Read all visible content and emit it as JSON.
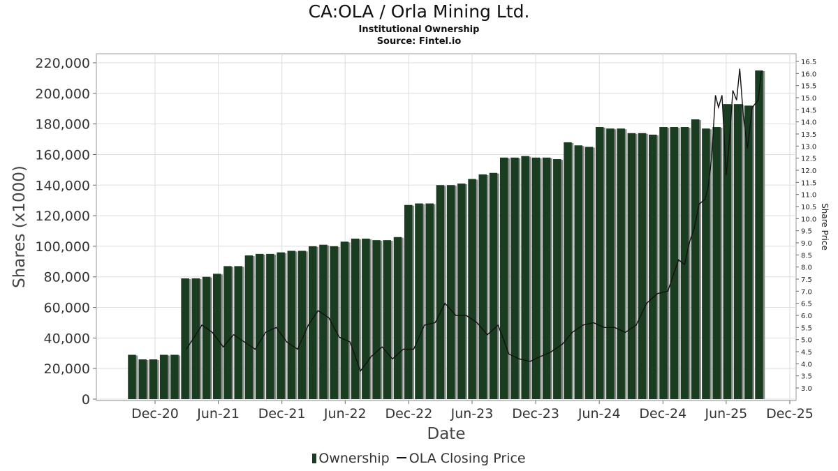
{
  "chart_data": {
    "type": "bar",
    "title": "CA:OLA / Orla Mining Ltd.",
    "subtitle": "Institutional Ownership",
    "source": "Source: Fintel.io",
    "ylabel": "Shares (x1000)",
    "xlabel": "Date",
    "y2label": "Share Price",
    "ylim": [
      0,
      225000
    ],
    "y2lim": [
      2.6,
      16.8
    ],
    "yticks": [
      "0",
      "20,000",
      "40,000",
      "60,000",
      "80,000",
      "100,000",
      "120,000",
      "140,000",
      "160,000",
      "180,000",
      "200,000",
      "220,000"
    ],
    "y2ticks": [
      "3.0",
      "3.5",
      "4.0",
      "4.5",
      "5.0",
      "5.5",
      "6.0",
      "6.5",
      "7.0",
      "7.5",
      "8.0",
      "8.5",
      "9.0",
      "9.5",
      "10.0",
      "10.5",
      "11.0",
      "11.5",
      "12.0",
      "12.5",
      "13.0",
      "13.5",
      "14.0",
      "14.5",
      "15.0",
      "15.5",
      "16.0",
      "16.5"
    ],
    "xticks": [
      "Dec-20",
      "Jun-21",
      "Dec-21",
      "Jun-22",
      "Dec-22",
      "Jun-23",
      "Dec-23",
      "Jun-24",
      "Dec-24",
      "Jun-25",
      "Dec-25"
    ],
    "grid": true,
    "legend_position": "bottom",
    "colors": {
      "bars": "#1a3d22",
      "bar_shadow": "#8a8a8a",
      "price_line": "#111111",
      "grid": "#dddddd"
    },
    "series": [
      {
        "name": "Ownership",
        "type": "bar",
        "values": [
          29000,
          26000,
          26000,
          29000,
          29000,
          79000,
          79000,
          80000,
          82000,
          87000,
          87000,
          94000,
          95000,
          95000,
          96000,
          97000,
          97000,
          100000,
          101000,
          100000,
          103000,
          105000,
          105000,
          104000,
          104000,
          106000,
          127000,
          128000,
          128000,
          140000,
          140000,
          141000,
          144000,
          147000,
          148000,
          158000,
          158000,
          159000,
          158000,
          158000,
          157000,
          168000,
          166000,
          165000,
          178000,
          177000,
          177000,
          174000,
          174000,
          173000,
          178000,
          178000,
          178000,
          183000,
          177000,
          178000,
          193000,
          193000,
          192000,
          215000
        ]
      },
      {
        "name": "OLA Closing Price",
        "type": "line",
        "x": [
          "2021-03-01",
          "2021-04-15",
          "2021-05-15",
          "2021-06-15",
          "2021-07-15",
          "2021-08-15",
          "2021-09-15",
          "2021-10-15",
          "2021-11-15",
          "2021-12-15",
          "2022-01-15",
          "2022-02-15",
          "2022-03-15",
          "2022-04-15",
          "2022-05-15",
          "2022-06-15",
          "2022-07-15",
          "2022-08-15",
          "2022-09-15",
          "2022-10-15",
          "2022-11-15",
          "2022-12-15",
          "2023-01-15",
          "2023-02-15",
          "2023-03-15",
          "2023-04-15",
          "2023-05-15",
          "2023-06-15",
          "2023-07-15",
          "2023-08-15",
          "2023-09-15",
          "2023-10-15",
          "2023-11-15",
          "2023-12-15",
          "2024-01-15",
          "2024-02-15",
          "2024-03-15",
          "2024-04-15",
          "2024-05-15",
          "2024-06-15",
          "2024-07-15",
          "2024-08-15",
          "2024-09-15",
          "2024-10-15",
          "2024-11-15",
          "2024-12-15",
          "2025-01-15",
          "2025-02-01",
          "2025-02-15",
          "2025-03-01",
          "2025-03-15",
          "2025-04-01",
          "2025-04-10",
          "2025-04-20",
          "2025-05-01",
          "2025-05-10",
          "2025-05-20",
          "2025-06-01",
          "2025-06-10",
          "2025-06-20",
          "2025-07-01",
          "2025-07-10",
          "2025-07-20",
          "2025-08-01",
          "2025-08-15",
          "2025-09-01",
          "2025-09-10"
        ],
        "values": [
          4.6,
          5.6,
          5.3,
          4.7,
          5.2,
          4.9,
          4.6,
          5.3,
          5.5,
          4.9,
          4.6,
          5.6,
          6.2,
          5.9,
          5.1,
          4.9,
          3.7,
          4.3,
          4.7,
          4.2,
          4.6,
          4.6,
          5.6,
          5.7,
          6.5,
          6.0,
          6.0,
          5.7,
          5.2,
          5.6,
          4.4,
          4.2,
          4.1,
          4.3,
          4.5,
          4.8,
          5.3,
          5.6,
          5.7,
          5.5,
          5.5,
          5.3,
          5.6,
          6.5,
          6.9,
          7.0,
          8.3,
          8.1,
          9.0,
          9.6,
          10.6,
          10.8,
          11.3,
          12.5,
          15.1,
          14.6,
          15.1,
          11.8,
          13.2,
          15.3,
          14.9,
          16.2,
          14.3,
          12.9,
          14.6,
          14.9,
          16.1
        ]
      }
    ]
  }
}
